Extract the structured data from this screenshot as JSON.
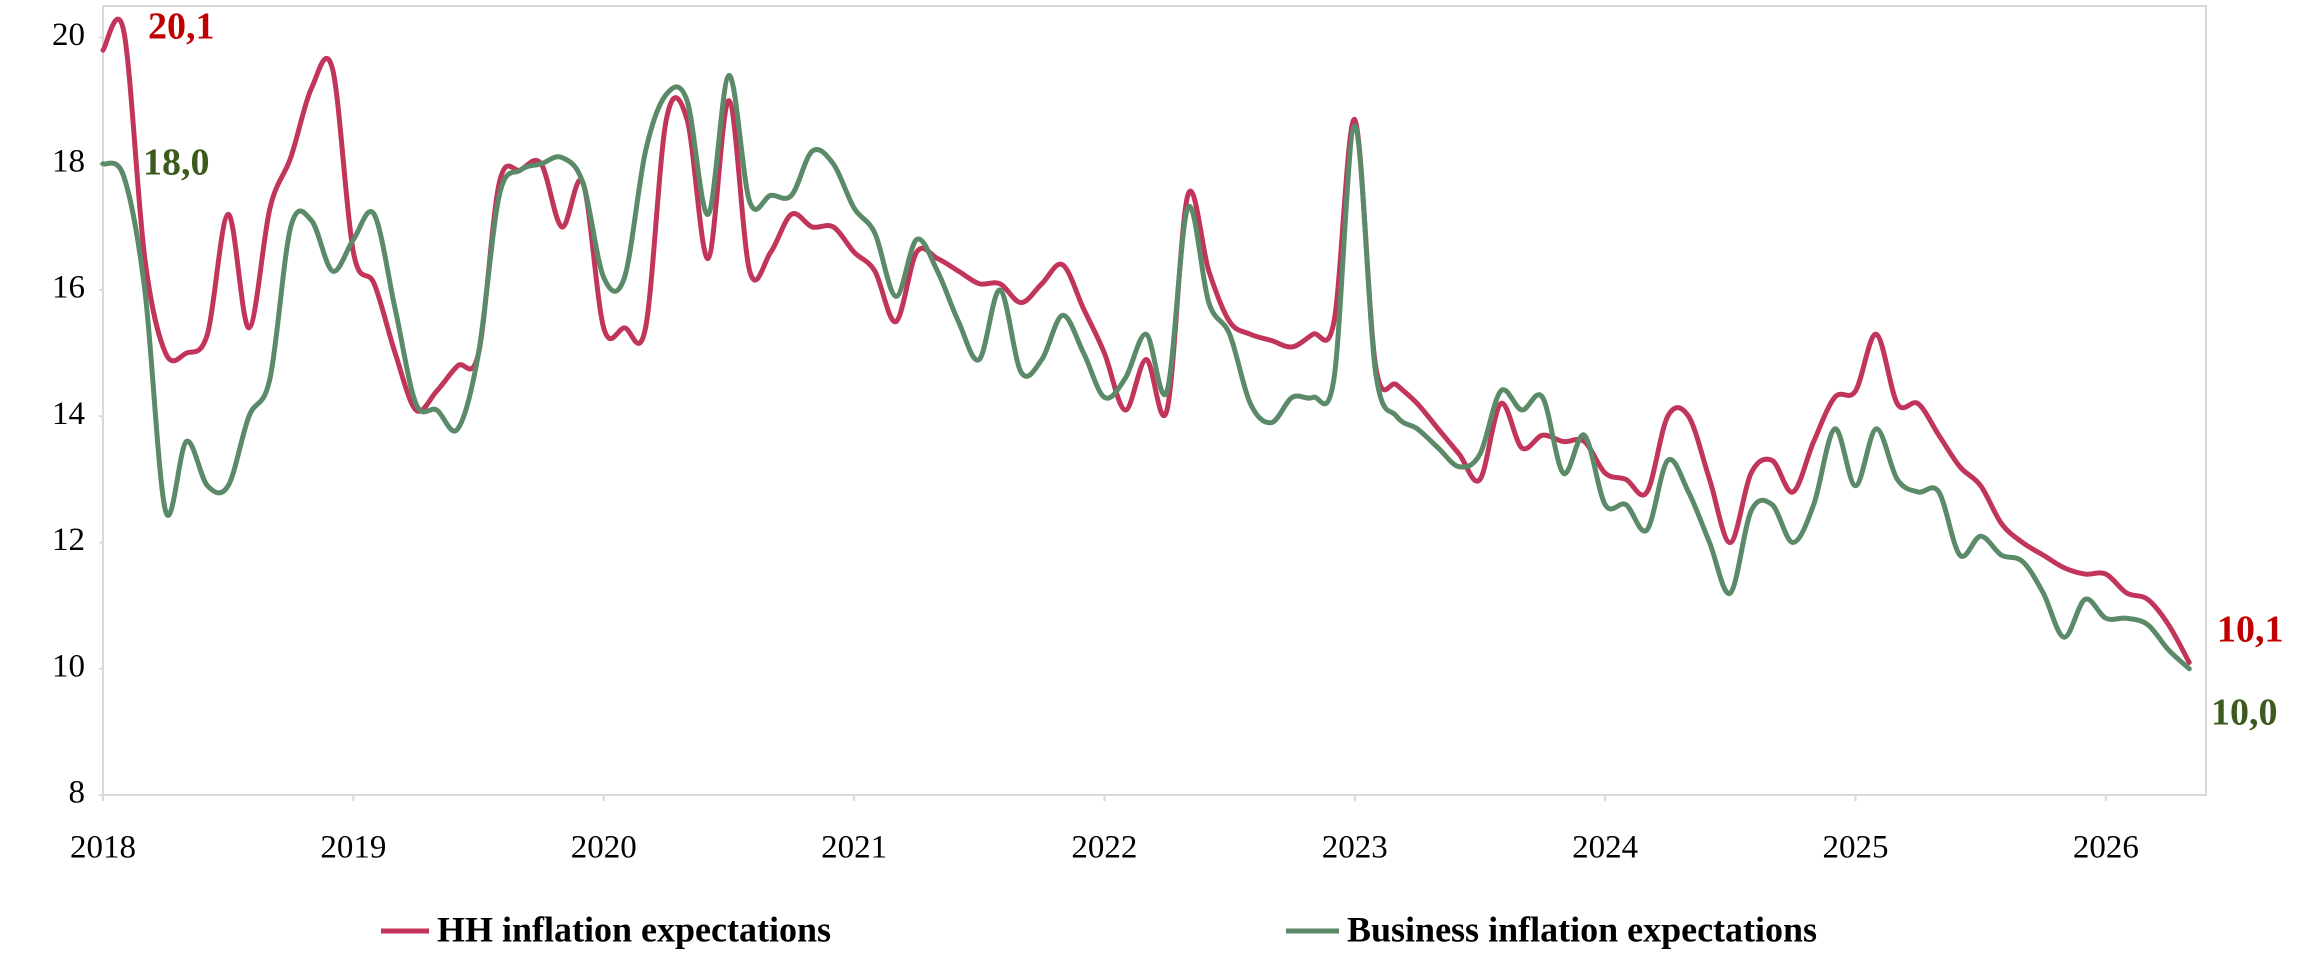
{
  "chart_data": {
    "type": "line",
    "x": [
      2018,
      2018.083,
      2018.167,
      2018.25,
      2018.333,
      2018.417,
      2018.5,
      2018.583,
      2018.667,
      2018.75,
      2018.833,
      2018.917,
      2019,
      2019.083,
      2019.167,
      2019.25,
      2019.333,
      2019.417,
      2019.5,
      2019.583,
      2019.667,
      2019.75,
      2019.833,
      2019.917,
      2020,
      2020.083,
      2020.167,
      2020.25,
      2020.333,
      2020.417,
      2020.5,
      2020.583,
      2020.667,
      2020.75,
      2020.833,
      2020.917,
      2021,
      2021.083,
      2021.167,
      2021.25,
      2021.333,
      2021.417,
      2021.5,
      2021.583,
      2021.667,
      2021.75,
      2021.833,
      2021.917,
      2022,
      2022.083,
      2022.167,
      2022.25,
      2022.333,
      2022.417,
      2022.5,
      2022.583,
      2022.667,
      2022.75,
      2022.833,
      2022.917,
      2023,
      2023.083,
      2023.167,
      2023.25,
      2023.333,
      2023.417,
      2023.5,
      2023.583,
      2023.667,
      2023.75,
      2023.833,
      2023.917,
      2024,
      2024.083,
      2024.167,
      2024.25,
      2024.333,
      2024.417,
      2024.5,
      2024.583,
      2024.667,
      2024.75,
      2024.833,
      2024.917,
      2025,
      2025.083,
      2025.167,
      2025.25,
      2025.333,
      2025.417,
      2025.5,
      2025.583,
      2025.667,
      2025.75,
      2025.833,
      2025.917,
      2026,
      2026.083,
      2026.167,
      2026.25,
      2026.333
    ],
    "series": [
      {
        "name": "HH inflation expectations",
        "color": "#c2355a",
        "values": [
          19.8,
          20.1,
          16.5,
          15.0,
          15.0,
          15.3,
          17.2,
          15.4,
          17.3,
          18.1,
          19.2,
          19.5,
          16.6,
          16.1,
          15.0,
          14.1,
          14.4,
          14.8,
          15.0,
          17.7,
          17.9,
          18.0,
          17.0,
          17.7,
          15.4,
          15.4,
          15.4,
          18.7,
          18.7,
          16.5,
          19.0,
          16.3,
          16.6,
          17.2,
          17.0,
          17.0,
          16.6,
          16.3,
          15.5,
          16.6,
          16.5,
          16.3,
          16.1,
          16.1,
          15.8,
          16.1,
          16.4,
          15.7,
          15.0,
          14.1,
          14.9,
          14.1,
          17.5,
          16.3,
          15.5,
          15.3,
          15.2,
          15.1,
          15.3,
          15.5,
          18.7,
          14.8,
          14.5,
          14.2,
          13.8,
          13.4,
          13.0,
          14.2,
          13.5,
          13.7,
          13.6,
          13.6,
          13.1,
          13.0,
          12.8,
          14.0,
          14.0,
          13.0,
          12.0,
          13.1,
          13.3,
          12.8,
          13.6,
          14.3,
          14.4,
          15.3,
          14.2,
          14.2,
          13.7,
          13.2,
          12.9,
          12.3,
          12.0,
          11.8,
          11.6,
          11.5,
          11.5,
          11.2,
          11.1,
          10.7,
          10.1
        ]
      },
      {
        "name": "Business inflation expectations",
        "color": "#5b8a68",
        "values": [
          18.0,
          17.8,
          16.0,
          12.5,
          13.6,
          12.9,
          12.9,
          14.0,
          14.6,
          17.0,
          17.1,
          16.3,
          16.8,
          17.2,
          15.7,
          14.2,
          14.1,
          13.8,
          15.0,
          17.5,
          17.9,
          18.0,
          18.1,
          17.7,
          16.2,
          16.2,
          18.2,
          19.1,
          19.0,
          17.2,
          19.4,
          17.4,
          17.5,
          17.5,
          18.2,
          18.0,
          17.3,
          16.9,
          15.9,
          16.8,
          16.3,
          15.5,
          14.9,
          16.0,
          14.7,
          14.9,
          15.6,
          15.0,
          14.3,
          14.6,
          15.3,
          14.4,
          17.3,
          15.8,
          15.3,
          14.2,
          13.9,
          14.3,
          14.3,
          14.6,
          18.6,
          14.7,
          14.0,
          13.8,
          13.5,
          13.2,
          13.4,
          14.4,
          14.1,
          14.3,
          13.1,
          13.7,
          12.6,
          12.6,
          12.2,
          13.3,
          12.8,
          12.0,
          11.2,
          12.5,
          12.6,
          12.0,
          12.6,
          13.8,
          12.9,
          13.8,
          13.0,
          12.8,
          12.8,
          11.8,
          12.1,
          11.8,
          11.7,
          11.2,
          10.5,
          11.1,
          10.8,
          10.8,
          10.7,
          10.3,
          10.0
        ]
      }
    ],
    "annotations": [
      {
        "text": "20,1",
        "color": "#c00000"
      },
      {
        "text": "18,0",
        "color": "#3d5a1e"
      },
      {
        "text": "10,1",
        "color": "#c00000"
      },
      {
        "text": "10,0",
        "color": "#3d5a1e"
      }
    ],
    "xlim": [
      2018,
      2026.4
    ],
    "xticks": [
      2018,
      2019,
      2020,
      2021,
      2022,
      2023,
      2024,
      2025,
      2026
    ],
    "ylim": [
      8,
      20.5
    ],
    "yticks": [
      8,
      10,
      12,
      14,
      16,
      18,
      20
    ],
    "grid": false,
    "legend": "bottom"
  }
}
